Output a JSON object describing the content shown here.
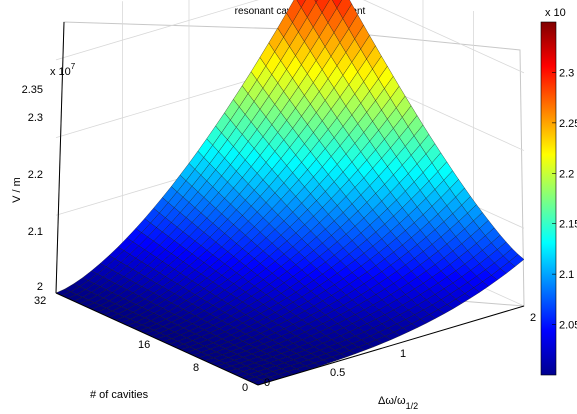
{
  "chart_data": {
    "type": "surface",
    "title": "resonant cavity peak gradient",
    "xlabel": "Δω/ω",
    "xlabel_subscript": "1/2",
    "ylabel": "# of cavities",
    "zlabel": "V / m",
    "z_exponent_label": "x 10",
    "z_exponent": "7",
    "colorbar_exponent_label": "x 10",
    "xlim": [
      0,
      2
    ],
    "ylim": [
      0,
      32
    ],
    "zlim": [
      20000000,
      23500000
    ],
    "x_ticks": [
      "0",
      "0.5",
      "1",
      "2"
    ],
    "y_ticks": [
      "0",
      "8",
      "16",
      "32"
    ],
    "z_ticks": [
      "2",
      "2.1",
      "2.2",
      "2.3",
      "2.35"
    ],
    "colorbar_ticks": [
      "2.05",
      "2.1",
      "2.15",
      "2.2",
      "2.25",
      "2.3"
    ],
    "colorbar_range": [
      20000000,
      23500000
    ],
    "colormap": "jet",
    "grid": true,
    "samples": {
      "x": [
        0,
        0.5,
        1,
        1.5,
        2
      ],
      "at_32_cavities": [
        20000000,
        20500000,
        21500000,
        22800000,
        23400000
      ],
      "at_0_cavities": [
        20000000,
        20000000,
        20050000,
        20250000,
        20600000
      ]
    }
  }
}
